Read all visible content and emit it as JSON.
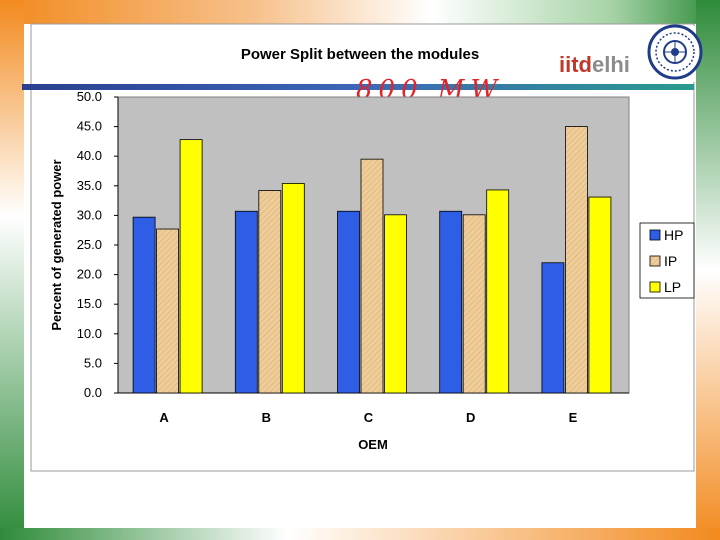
{
  "slide": {
    "logo_text_iitd": "iitd",
    "logo_text_elhi": "elhi",
    "handwritten_note": "800 MW",
    "colors": {
      "saffron": "#f28a1e",
      "green": "#2e8b3a",
      "rule_blue": "#2a3f8f",
      "logo_red": "#c0392b",
      "logo_grey": "#8c8c8c",
      "ink_red": "#e0242a",
      "seal_blue": "#1f3c88"
    }
  },
  "chart_data": {
    "type": "bar",
    "title": "Power Split between the modules",
    "xlabel": "OEM",
    "ylabel": "Percent of  generated power",
    "categories": [
      "A",
      "B",
      "C",
      "D",
      "E"
    ],
    "series": [
      {
        "name": "HP",
        "values": [
          29.7,
          30.7,
          30.7,
          30.7,
          22.0
        ],
        "color": "#2e5ee6"
      },
      {
        "name": "IP",
        "values": [
          27.7,
          34.2,
          39.5,
          30.1,
          45.0
        ],
        "color": "#efcd9a"
      },
      {
        "name": "LP",
        "values": [
          42.8,
          35.4,
          30.1,
          34.3,
          33.1
        ],
        "color": "#ffff00"
      }
    ],
    "ylim": [
      0,
      50
    ],
    "yticks": [
      "0.0",
      "5.0",
      "10.0",
      "15.0",
      "20.0",
      "25.0",
      "30.0",
      "35.0",
      "40.0",
      "45.0",
      "50.0"
    ],
    "grid": false,
    "legend_position": "right",
    "plot_background": "#c0c0c0"
  }
}
